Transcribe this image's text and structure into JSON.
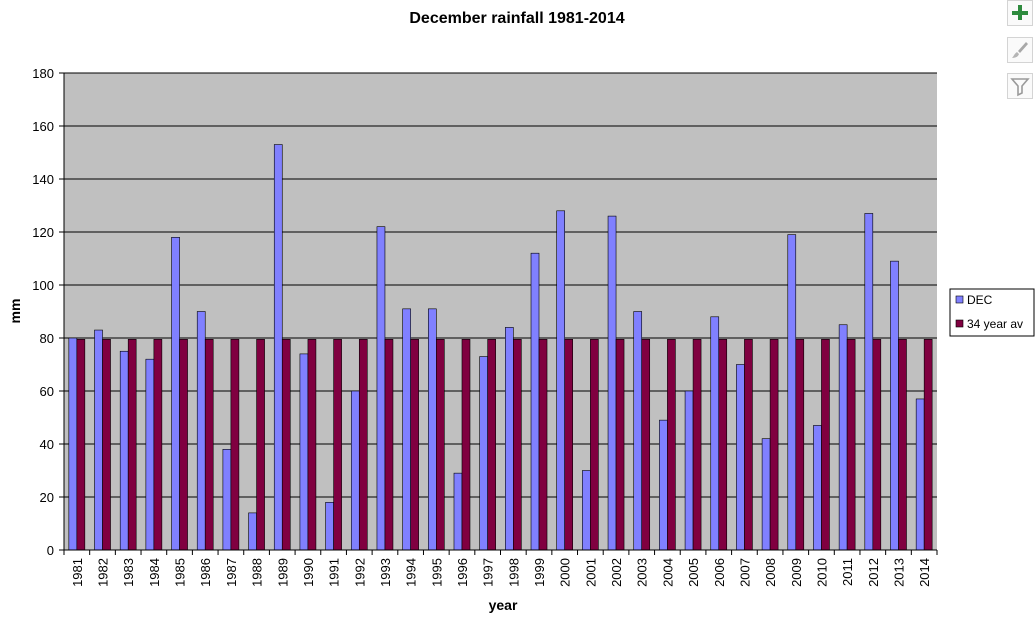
{
  "chart_data": {
    "type": "bar",
    "title": "December rainfall 1981-2014",
    "xlabel": "year",
    "ylabel": "mm",
    "ylim": [
      0,
      180
    ],
    "yticks": [
      0,
      20,
      40,
      60,
      80,
      100,
      120,
      140,
      160,
      180
    ],
    "grid": true,
    "legend_position": "right",
    "categories": [
      "1981",
      "1982",
      "1983",
      "1984",
      "1985",
      "1986",
      "1987",
      "1988",
      "1989",
      "1990",
      "1991",
      "1992",
      "1993",
      "1994",
      "1995",
      "1996",
      "1997",
      "1998",
      "1999",
      "2000",
      "2001",
      "2002",
      "2003",
      "2004",
      "2005",
      "2006",
      "2007",
      "2008",
      "2009",
      "2010",
      "2011",
      "2012",
      "2013",
      "2014"
    ],
    "series": [
      {
        "name": "DEC",
        "color": "#8080ff",
        "values": [
          80,
          83,
          75,
          72,
          118,
          90,
          38,
          14,
          153,
          74,
          18,
          60,
          122,
          91,
          91,
          29,
          73,
          84,
          112,
          128,
          30,
          126,
          90,
          49,
          60,
          88,
          70,
          42,
          119,
          47,
          85,
          127,
          109,
          57
        ]
      },
      {
        "name": "34 year av",
        "color": "#800040",
        "values": [
          79.5,
          79.5,
          79.5,
          79.5,
          79.5,
          79.5,
          79.5,
          79.5,
          79.5,
          79.5,
          79.5,
          79.5,
          79.5,
          79.5,
          79.5,
          79.5,
          79.5,
          79.5,
          79.5,
          79.5,
          79.5,
          79.5,
          79.5,
          79.5,
          79.5,
          79.5,
          79.5,
          79.5,
          79.5,
          79.5,
          79.5,
          79.5,
          79.5,
          79.5
        ]
      }
    ],
    "plot_background": "#c0c0c0"
  },
  "toolbar": {
    "buttons": [
      {
        "icon": "plus-icon",
        "color": "#2e8b3e"
      },
      {
        "icon": "brush-icon",
        "color": "#9a9a9a"
      },
      {
        "icon": "filter-icon",
        "color": "#9a9a9a"
      }
    ]
  }
}
